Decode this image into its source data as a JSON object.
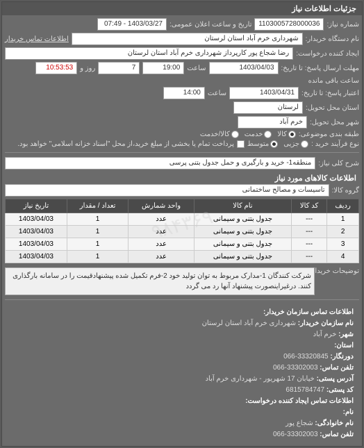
{
  "header": {
    "title": "جزئیات اطلاعات نیاز"
  },
  "fields": {
    "need_number_label": "شماره نیاز:",
    "need_number": "1103005728000036",
    "announce_date_label": "تاریخ و ساعت اعلان عمومی:",
    "announce_date": "1403/03/27 - 07:49",
    "buyer_name_label": "نام دستگاه خریدار:",
    "buyer_name": "شهرداری خرم آباد استان لرستان",
    "contact_label": "اطلاعات تماس خریدار",
    "requester_label": "ایجاد کننده درخواست:",
    "requester": "رضا شجاع پور کارپرداز شهرداری خرم آباد استان لرستان",
    "deadline_label": "مهلت ارسال پاسخ: تا تاریخ:",
    "deadline_date": "1403/04/03",
    "deadline_time_label": "ساعت",
    "deadline_time": "19:00",
    "days_label": "روز و",
    "days_remaining": "7",
    "time_remaining_label": "ساعت باقی مانده",
    "time_remaining": "10:53:53",
    "validity_label": "اعتبار پاسخ: تا تاریخ:",
    "validity_date": "1403/04/31",
    "validity_time_label": "ساعت",
    "validity_time": "14:00",
    "delivery_province_label": "استان محل تحویل:",
    "delivery_province": "لرستان",
    "delivery_city_label": "شهر محل تحویل:",
    "delivery_city": "خرم آباد",
    "subject_label": "طبقه بندی موضوعی:",
    "subject_goods": "کالا",
    "subject_service": "خدمت",
    "subject_both": "کالا/خدمت",
    "process_label": "نوع فرآیند خرید :",
    "process_low": "جزیی",
    "process_mid": "متوسط",
    "process_note": "پرداخت تمام یا بخشی از مبلغ خرید،از محل \"اسناد خزانه اسلامی\" خواهد بود.",
    "need_desc_label": "شرح کلی نیاز:",
    "need_desc": "منطقه1- خرید و بارگیری و حمل جدول بتنی پرسی"
  },
  "goods_section": {
    "title": "اطلاعات کالاهای مورد نیاز",
    "group_label": "گروه کالا:",
    "group_value": "تاسیسات و مصالح ساختمانی"
  },
  "table": {
    "headers": {
      "row": "ردیف",
      "code": "کد کالا",
      "name": "نام کالا",
      "unit": "واحد شمارش",
      "qty": "تعداد / مقدار",
      "date": "تاریخ نیاز"
    },
    "rows": [
      {
        "row": "1",
        "code": "---",
        "name": "جدول بتنی و سیمانی",
        "unit": "عدد",
        "qty": "1",
        "date": "1403/04/03"
      },
      {
        "row": "2",
        "code": "---",
        "name": "جدول بتنی و سیمانی",
        "unit": "عدد",
        "qty": "1",
        "date": "1403/04/03"
      },
      {
        "row": "3",
        "code": "---",
        "name": "جدول بتنی و سیمانی",
        "unit": "عدد",
        "qty": "1",
        "date": "1403/04/03"
      },
      {
        "row": "4",
        "code": "---",
        "name": "جدول بتنی و سیمانی",
        "unit": "عدد",
        "qty": "1",
        "date": "1403/04/03"
      }
    ]
  },
  "notes": {
    "label": "توضیحات خریدار:",
    "text": "شرکت کنندگان 1-مدارک مربوط به توان تولید خود 2-فرم تکمیل شده پیشنهادقیمت را در سامانه بارگذاری کنند. درغیراینصورت پیشنهاد آنها رد می گردد"
  },
  "contact": {
    "title": "اطلاعات تماس سازمان خریدار:",
    "org_label": "نام سازمان خریدار:",
    "org": "شهرداری خرم آباد استان لرستان",
    "city_label": "شهر:",
    "city": "خرم آباد",
    "province_label": "استان:",
    "fax_label": "دورنگار:",
    "fax": "33320845-066",
    "phone_label": "تلفن تماس:",
    "phone": "33302003-066",
    "address_label": "آدرس پستی:",
    "address": "خیابان 17 شهریور - شهرداری خرم آباد",
    "postal_label": "کد پستی:",
    "postal": "6815784747",
    "req_contact_title": "اطلاعات تماس ایجاد کننده درخواست:",
    "req_name_label": "نام:",
    "req_family_label": "نام خانوادگی:",
    "req_family": "شجاع پور",
    "req_phone_label": "تلفن تماس:",
    "req_phone": "33302003-066"
  },
  "colors": {
    "panel_bg": "#6b6b6b",
    "header_bg": "#555555",
    "field_bg": "#ffffff",
    "text_light": "#dddddd",
    "th_bg": "#4a4a4a"
  }
}
